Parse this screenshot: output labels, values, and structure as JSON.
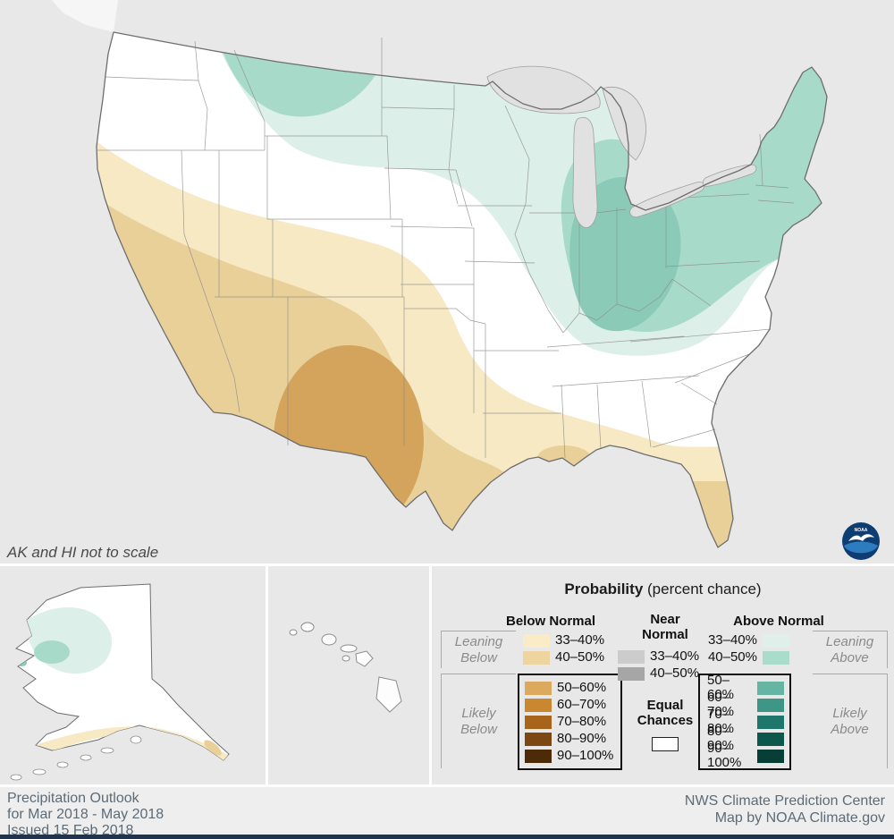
{
  "map": {
    "scale_note": "AK and HI not to scale",
    "logo_label": "NOAA",
    "palette": {
      "background": "#e8e8e8",
      "land": "#ffffff",
      "water": "#e1e1e1",
      "outline": "#6e6e6e",
      "state_line": "#8c8c8c",
      "above_33": "#dcefe8",
      "above_40": "#a7dac9",
      "above_50": "#8acab7",
      "below_33": "#f6e9c4",
      "below_40": "#e9cf98",
      "below_50": "#d4a45c",
      "logo_navy": "#0d3d73",
      "logo_blue": "#2d7cc0",
      "bottom_bar": "#20334f"
    }
  },
  "legend": {
    "title_bold": "Probability",
    "title_note": " (percent chance)",
    "below": {
      "header": "Below Normal",
      "leaning_label": "Leaning\nBelow",
      "likely_label": "Likely\nBelow",
      "rows": [
        {
          "range": "33–40%",
          "color": "#f9ecc6"
        },
        {
          "range": "40–50%",
          "color": "#eed49e"
        },
        {
          "range": "50–60%",
          "color": "#dcaa5e"
        },
        {
          "range": "60–70%",
          "color": "#c9872f"
        },
        {
          "range": "70–80%",
          "color": "#a8641a"
        },
        {
          "range": "80–90%",
          "color": "#7d4712"
        },
        {
          "range": "90–100%",
          "color": "#4d2b08"
        }
      ]
    },
    "near": {
      "header": "Near\nNormal",
      "rows": [
        {
          "range": "33–40%",
          "color": "#cccccc"
        },
        {
          "range": "40–50%",
          "color": "#a6a6a6"
        }
      ],
      "equal_label": "Equal\nChances",
      "equal_color": "#ffffff"
    },
    "above": {
      "header": "Above Normal",
      "leaning_label": "Leaning\nAbove",
      "likely_label": "Likely\nAbove",
      "rows": [
        {
          "range": "33–40%",
          "color": "#def0e9"
        },
        {
          "range": "40–50%",
          "color": "#aadccc"
        },
        {
          "range": "50–60%",
          "color": "#66b5a3"
        },
        {
          "range": "60–70%",
          "color": "#3e9687"
        },
        {
          "range": "70–80%",
          "color": "#1e776a"
        },
        {
          "range": "80–90%",
          "color": "#0d584d"
        },
        {
          "range": "90–100%",
          "color": "#073f36"
        }
      ]
    }
  },
  "footer": {
    "left_lines": [
      "Precipitation Outlook",
      "for Mar 2018 - May 2018",
      "Issued 15 Feb 2018"
    ],
    "right_lines": [
      "NWS Climate Prediction Center",
      "Map by NOAA Climate.gov"
    ]
  }
}
